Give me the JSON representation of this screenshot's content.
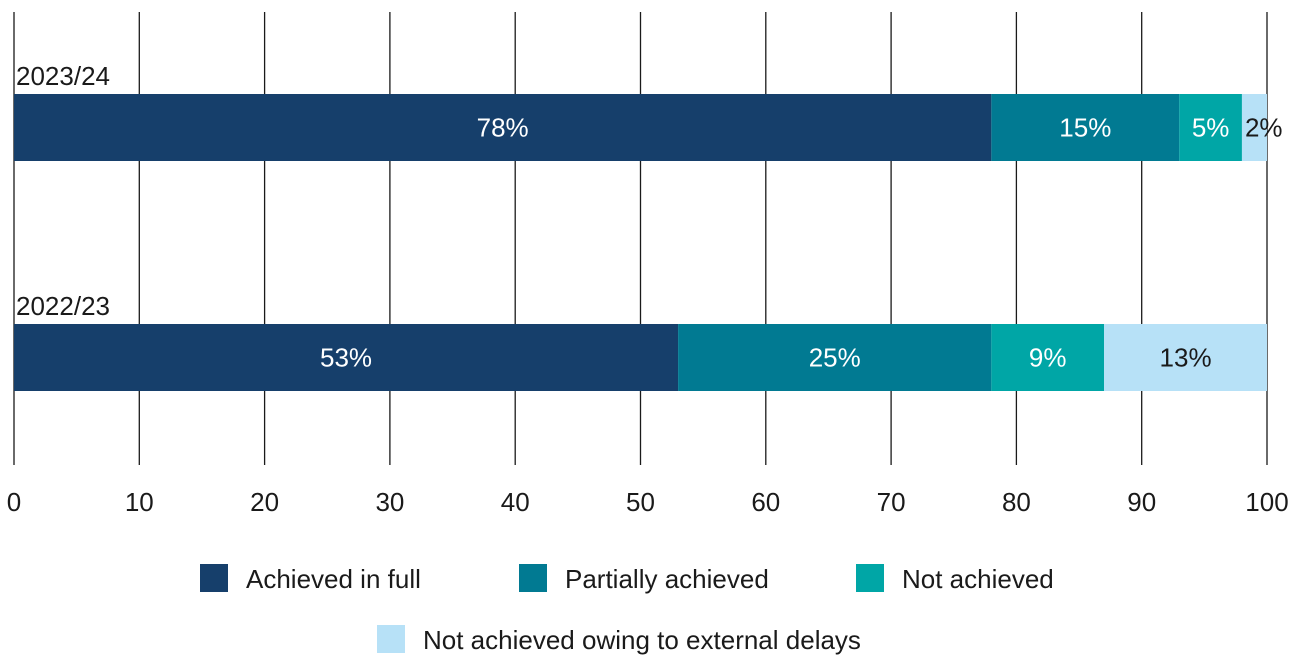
{
  "chart_data": {
    "type": "bar",
    "orientation": "horizontal",
    "stacked": true,
    "categories": [
      "2023/24",
      "2022/23"
    ],
    "series": [
      {
        "name": "Achieved in full",
        "values": [
          78,
          53
        ],
        "labels": [
          "78%",
          "53%"
        ],
        "color": "#163f6b",
        "label_color": "#ffffff"
      },
      {
        "name": "Partially achieved",
        "values": [
          15,
          25
        ],
        "labels": [
          "15%",
          "25%"
        ],
        "color": "#017a92",
        "label_color": "#ffffff"
      },
      {
        "name": "Not achieved",
        "values": [
          5,
          9
        ],
        "labels": [
          "5%",
          "9%"
        ],
        "color": "#00a6a6",
        "label_color": "#ffffff"
      },
      {
        "name": "Not achieved owing to external delays",
        "values": [
          2,
          13
        ],
        "labels": [
          "2%",
          "13%"
        ],
        "color": "#b7e1f7",
        "label_color": "#1a1a1a"
      }
    ],
    "xlim": [
      0,
      100
    ],
    "xticks": [
      "0",
      "10",
      "20",
      "30",
      "40",
      "50",
      "60",
      "70",
      "80",
      "90",
      "100"
    ],
    "grid": "vertical",
    "legend_position": "bottom"
  }
}
